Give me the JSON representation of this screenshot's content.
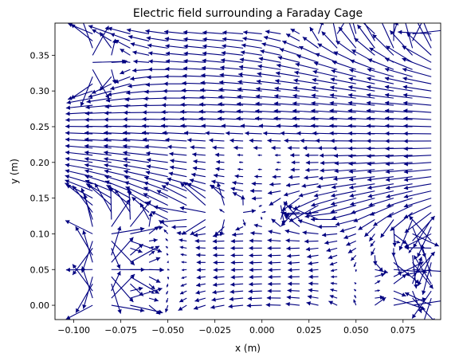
{
  "chart_data": {
    "type": "quiver",
    "title": "Electric field surrounding a Faraday Cage",
    "xlabel": "x (m)",
    "ylabel": "y (m)",
    "xlim": [
      -0.11,
      0.095
    ],
    "ylim": [
      -0.02,
      0.395
    ],
    "x_ticks": [
      -0.1,
      -0.075,
      -0.05,
      -0.025,
      0.0,
      0.025,
      0.05,
      0.075
    ],
    "x_tick_labels": [
      "−0.100",
      "−0.075",
      "−0.050",
      "−0.025",
      "0.000",
      "0.025",
      "0.050",
      "0.075"
    ],
    "y_ticks": [
      0.0,
      0.05,
      0.1,
      0.15,
      0.2,
      0.25,
      0.3,
      0.35
    ],
    "y_tick_labels": [
      "0.00",
      "0.05",
      "0.10",
      "0.15",
      "0.20",
      "0.25",
      "0.30",
      "0.35"
    ],
    "grid": false,
    "arrow_color": "#000080",
    "x_grid": [
      -0.09,
      -0.08,
      -0.07,
      -0.06,
      -0.05,
      -0.04,
      -0.03,
      -0.02,
      -0.01,
      0.0,
      0.01,
      0.02,
      0.03,
      0.04,
      0.05,
      0.06,
      0.07,
      0.08,
      0.09
    ],
    "y_grid": [
      0.0,
      0.01,
      0.02,
      0.03,
      0.04,
      0.05,
      0.06,
      0.07,
      0.08,
      0.09,
      0.1,
      0.11,
      0.12,
      0.13,
      0.14,
      0.15,
      0.16,
      0.17,
      0.18,
      0.19,
      0.2,
      0.21,
      0.22,
      0.23,
      0.24,
      0.25,
      0.26,
      0.27,
      0.28,
      0.29,
      0.3,
      0.31,
      0.32,
      0.33,
      0.34,
      0.35,
      0.36,
      0.37,
      0.38
    ]
  }
}
